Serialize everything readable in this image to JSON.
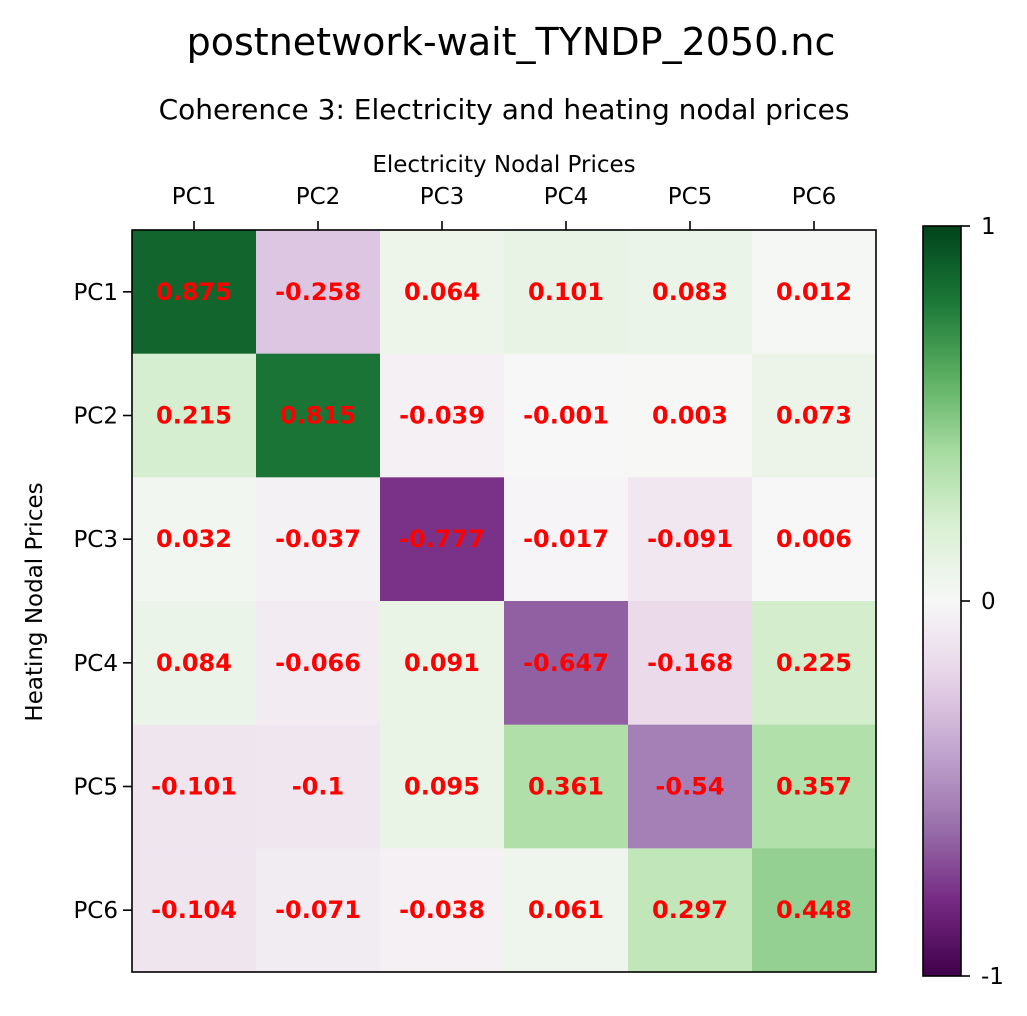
{
  "colors": {
    "annotation": "#ff0000",
    "colormap": "PRGn",
    "colormap_stops": [
      "#40004b",
      "#762a83",
      "#9970ab",
      "#c2a5cf",
      "#e7d4e8",
      "#f7f7f7",
      "#d9f0d3",
      "#a6dba0",
      "#5aae61",
      "#1b7837",
      "#00441b"
    ]
  },
  "chart_data": {
    "type": "heatmap",
    "suptitle": "postnetwork-wait_TYNDP_2050.nc",
    "title": "Coherence 3: Electricity and heating nodal prices",
    "xlabel": "Electricity Nodal Prices",
    "ylabel": "Heating Nodal Prices",
    "x_categories": [
      "PC1",
      "PC2",
      "PC3",
      "PC4",
      "PC5",
      "PC6"
    ],
    "y_categories": [
      "PC1",
      "PC2",
      "PC3",
      "PC4",
      "PC5",
      "PC6"
    ],
    "x_axis_position": "top",
    "values": [
      [
        0.875,
        -0.258,
        0.064,
        0.101,
        0.083,
        0.012
      ],
      [
        0.215,
        0.815,
        -0.039,
        -0.001,
        0.003,
        0.073
      ],
      [
        0.032,
        -0.037,
        -0.777,
        -0.017,
        -0.091,
        0.006
      ],
      [
        0.084,
        -0.066,
        0.091,
        -0.647,
        -0.168,
        0.225
      ],
      [
        -0.101,
        -0.1,
        0.095,
        0.361,
        -0.54,
        0.357
      ],
      [
        -0.104,
        -0.071,
        -0.038,
        0.061,
        0.297,
        0.448
      ]
    ],
    "value_labels": [
      [
        "0.875",
        "-0.258",
        "0.064",
        "0.101",
        "0.083",
        "0.012"
      ],
      [
        "0.215",
        "0.815",
        "-0.039",
        "-0.001",
        "0.003",
        "0.073"
      ],
      [
        "0.032",
        "-0.037",
        "-0.777",
        "-0.017",
        "-0.091",
        "0.006"
      ],
      [
        "0.084",
        "-0.066",
        "0.091",
        "-0.647",
        "-0.168",
        "0.225"
      ],
      [
        "-0.101",
        "-0.1",
        "0.095",
        "0.361",
        "-0.54",
        "0.357"
      ],
      [
        "-0.104",
        "-0.071",
        "-0.038",
        "0.061",
        "0.297",
        "0.448"
      ]
    ],
    "colorbar": {
      "range": [
        -1,
        1
      ],
      "ticks": [
        1,
        0,
        -1
      ],
      "tick_labels": [
        "1",
        "0",
        "-1"
      ],
      "position": "right"
    }
  }
}
